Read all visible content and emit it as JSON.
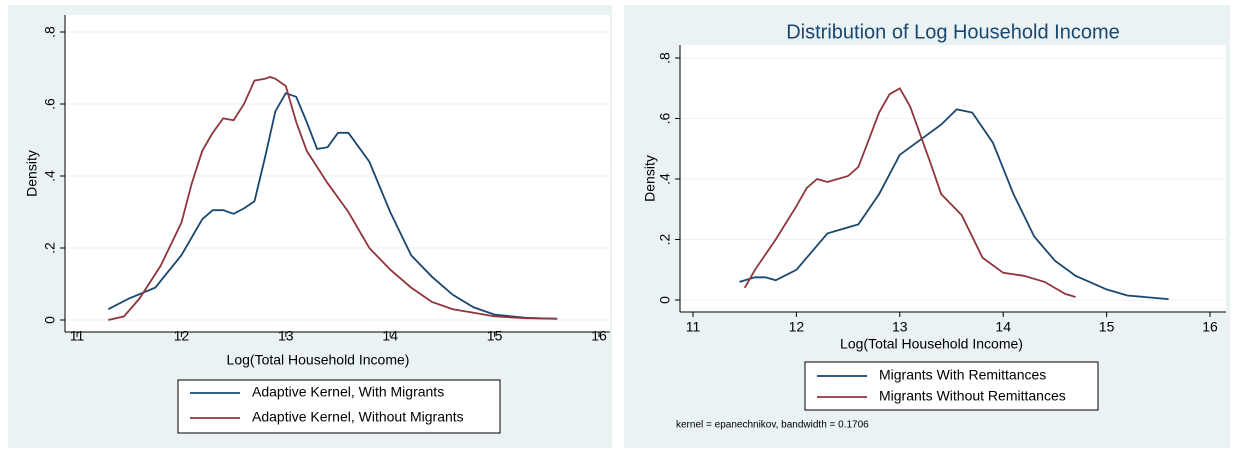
{
  "chart_data": [
    {
      "type": "line",
      "xlabel": "Log(Total Household Income)",
      "ylabel": "Density",
      "xlim": [
        11,
        16
      ],
      "xticks": [
        11,
        12,
        13,
        14,
        15,
        16
      ],
      "ylim": [
        0,
        0.8
      ],
      "yticks": [
        0,
        {
          "value": 0.2,
          "label": ".2"
        },
        {
          "value": 0.4,
          "label": ".4"
        },
        {
          "value": 0.6,
          "label": ".6"
        },
        {
          "value": 0.8,
          "label": ".8"
        }
      ],
      "grid": true,
      "series": [
        {
          "name": "Adaptive Kernel, With Migrants",
          "color": "#1a476f",
          "x": [
            11.3,
            11.5,
            11.75,
            12,
            12.2,
            12.3,
            12.4,
            12.5,
            12.6,
            12.7,
            12.8,
            12.9,
            13.0,
            13.1,
            13.2,
            13.3,
            13.4,
            13.5,
            13.6,
            13.8,
            14.0,
            14.2,
            14.4,
            14.6,
            14.8,
            15,
            15.3,
            15.6
          ],
          "values": [
            0.03,
            0.06,
            0.09,
            0.18,
            0.28,
            0.305,
            0.305,
            0.295,
            0.31,
            0.33,
            0.45,
            0.58,
            0.63,
            0.62,
            0.55,
            0.475,
            0.48,
            0.52,
            0.52,
            0.44,
            0.3,
            0.18,
            0.12,
            0.07,
            0.035,
            0.015,
            0.006,
            0.003
          ]
        },
        {
          "name": "Adaptive Kernel, Without Migrants",
          "color": "#90353b",
          "x": [
            11.3,
            11.45,
            11.6,
            11.8,
            12,
            12.1,
            12.2,
            12.3,
            12.4,
            12.5,
            12.6,
            12.7,
            12.8,
            12.85,
            12.9,
            13.0,
            13.1,
            13.2,
            13.4,
            13.6,
            13.8,
            14.0,
            14.2,
            14.4,
            14.6,
            14.8,
            15,
            15.3,
            15.6
          ],
          "values": [
            0.0,
            0.01,
            0.06,
            0.15,
            0.27,
            0.38,
            0.47,
            0.52,
            0.56,
            0.555,
            0.6,
            0.665,
            0.67,
            0.675,
            0.67,
            0.65,
            0.55,
            0.47,
            0.38,
            0.3,
            0.2,
            0.14,
            0.09,
            0.05,
            0.03,
            0.02,
            0.01,
            0.005,
            0.004
          ]
        }
      ]
    },
    {
      "type": "line",
      "title": "Distribution of Log Household Income",
      "xlabel": "Log(Total Household Income)",
      "ylabel": "Density",
      "note": "kernel = epanechnikov, bandwidth = 0.1706",
      "xlim": [
        11,
        16
      ],
      "xticks": [
        11,
        12,
        13,
        14,
        15,
        16
      ],
      "ylim": [
        0,
        0.8
      ],
      "yticks": [
        0,
        {
          "value": 0.2,
          "label": ".2"
        },
        {
          "value": 0.4,
          "label": ".4"
        },
        {
          "value": 0.6,
          "label": ".6"
        },
        {
          "value": 0.8,
          "label": ".8"
        }
      ],
      "grid": true,
      "series": [
        {
          "name": "Migrants With Remittances",
          "color": "#1a476f",
          "x": [
            11.45,
            11.6,
            11.7,
            11.8,
            12.0,
            12.2,
            12.3,
            12.5,
            12.6,
            12.8,
            13.0,
            13.2,
            13.4,
            13.55,
            13.7,
            13.9,
            14.1,
            14.3,
            14.5,
            14.7,
            15.0,
            15.2,
            15.6
          ],
          "values": [
            0.06,
            0.075,
            0.075,
            0.065,
            0.1,
            0.18,
            0.22,
            0.24,
            0.25,
            0.35,
            0.48,
            0.53,
            0.58,
            0.63,
            0.62,
            0.52,
            0.35,
            0.21,
            0.13,
            0.08,
            0.035,
            0.015,
            0.003
          ]
        },
        {
          "name": "Migrants Without Remittances",
          "color": "#90353b",
          "x": [
            11.5,
            11.6,
            11.8,
            12.0,
            12.1,
            12.2,
            12.3,
            12.5,
            12.6,
            12.7,
            12.8,
            12.9,
            13.0,
            13.1,
            13.3,
            13.4,
            13.6,
            13.8,
            14.0,
            14.2,
            14.4,
            14.6,
            14.7
          ],
          "values": [
            0.04,
            0.1,
            0.2,
            0.31,
            0.37,
            0.4,
            0.39,
            0.41,
            0.44,
            0.53,
            0.62,
            0.68,
            0.7,
            0.64,
            0.45,
            0.35,
            0.28,
            0.14,
            0.09,
            0.08,
            0.06,
            0.02,
            0.01
          ]
        }
      ]
    }
  ]
}
